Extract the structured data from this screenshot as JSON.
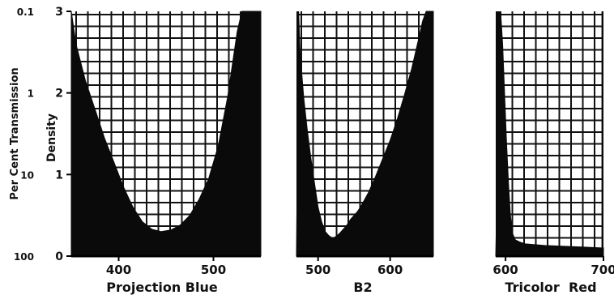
{
  "chart_data": [
    {
      "type": "area",
      "title": "",
      "xlabel": "Projection Blue",
      "ylabel": "Density",
      "secondary_ylabel": "Per Cent Transmission",
      "xlim": [
        350,
        550
      ],
      "ylim": [
        0,
        3
      ],
      "xticks": [
        "400",
        "500"
      ],
      "yticks": [
        "0",
        "1",
        "2",
        "3"
      ],
      "secondary_yticks": [
        "100",
        "10",
        "1",
        "0.1"
      ],
      "grid": true,
      "x": [
        350,
        355,
        365,
        375,
        385,
        395,
        405,
        415,
        425,
        435,
        445,
        455,
        465,
        475,
        485,
        495,
        505,
        515,
        520,
        525,
        530,
        535
      ],
      "y": [
        3.0,
        2.6,
        2.15,
        1.8,
        1.45,
        1.15,
        0.85,
        0.6,
        0.42,
        0.33,
        0.3,
        0.32,
        0.38,
        0.5,
        0.7,
        0.95,
        1.35,
        1.95,
        2.35,
        2.75,
        3.0,
        3.0
      ]
    },
    {
      "type": "area",
      "title": "",
      "xlabel": "B2",
      "xlim": [
        470,
        660
      ],
      "ylim": [
        0,
        3
      ],
      "xticks": [
        "500",
        "600"
      ],
      "grid": true,
      "x": [
        473,
        475,
        480,
        485,
        490,
        495,
        500,
        505,
        510,
        515,
        520,
        525,
        530,
        535,
        540,
        545,
        550,
        555,
        560,
        570,
        580,
        590,
        600,
        610,
        620,
        630,
        640,
        645,
        650
      ],
      "y": [
        3.0,
        2.5,
        1.95,
        1.55,
        1.2,
        0.9,
        0.6,
        0.42,
        0.3,
        0.25,
        0.22,
        0.24,
        0.28,
        0.33,
        0.38,
        0.45,
        0.5,
        0.55,
        0.62,
        0.78,
        0.98,
        1.2,
        1.42,
        1.68,
        1.98,
        2.3,
        2.68,
        2.88,
        3.0
      ]
    },
    {
      "type": "area",
      "title": "",
      "xlabel": "Tricolor  Red",
      "xlim": [
        590,
        700
      ],
      "ylim": [
        0,
        3
      ],
      "xticks": [
        "600",
        "700"
      ],
      "grid": true,
      "x": [
        595,
        597,
        599,
        601,
        603,
        605,
        607,
        610,
        615,
        620,
        640,
        660,
        680,
        698
      ],
      "y": [
        3.0,
        2.6,
        2.0,
        1.4,
        0.9,
        0.5,
        0.28,
        0.2,
        0.17,
        0.15,
        0.13,
        0.12,
        0.11,
        0.1
      ]
    }
  ]
}
